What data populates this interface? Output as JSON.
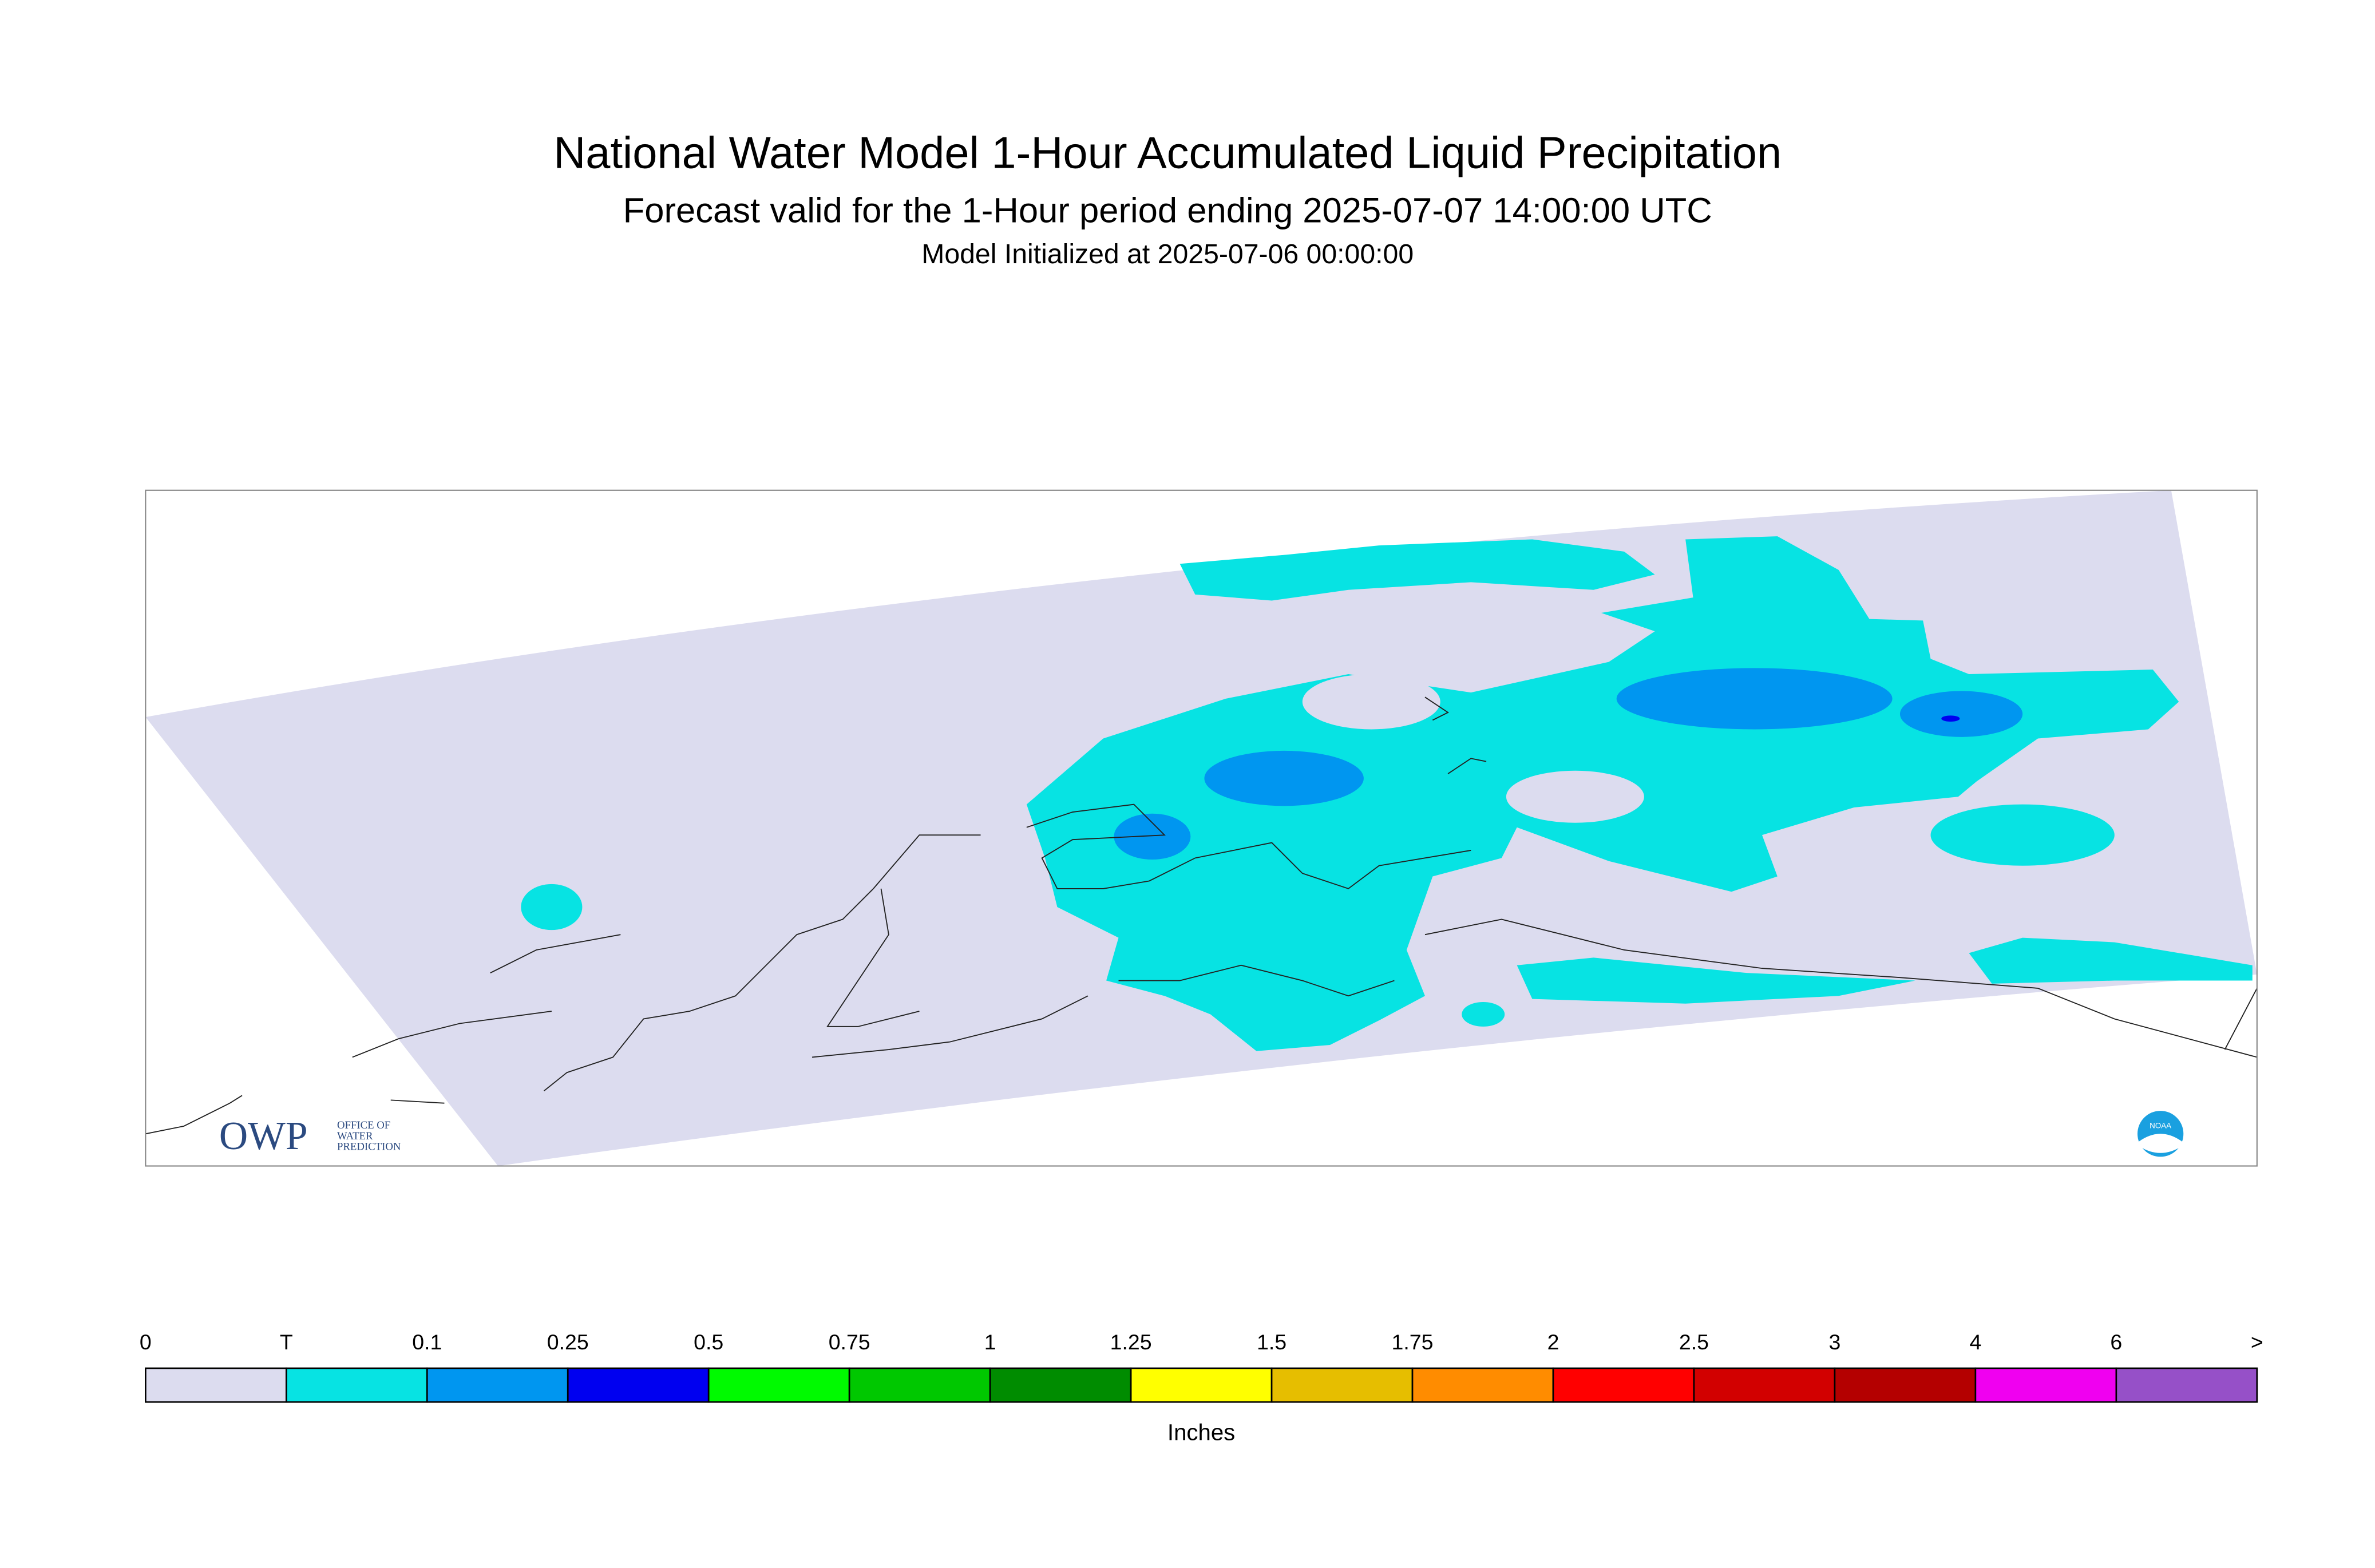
{
  "header": {
    "title": "National Water Model 1-Hour Accumulated Liquid Precipitation",
    "subtitle": "Forecast valid for the 1-Hour period ending 2025-07-07 14:00:00 UTC",
    "init": "Model Initialized at 2025-07-06 00:00:00"
  },
  "legend": {
    "labels": [
      "0",
      "T",
      "0.1",
      "0.25",
      "0.5",
      "0.75",
      "1",
      "1.25",
      "1.5",
      "1.75",
      "2",
      "2.5",
      "3",
      "4",
      "6",
      ">"
    ],
    "colors": [
      "#dcdcef",
      "#07e3e3",
      "#0096f0",
      "#0000f0",
      "#00fa00",
      "#00c800",
      "#008c00",
      "#ffff00",
      "#e6be00",
      "#ff8c00",
      "#ff0000",
      "#d20000",
      "#b40000",
      "#f000f0",
      "#9650c8"
    ],
    "unit": "Inches"
  },
  "logos": {
    "owp": "OWP",
    "owp_lines": [
      "OFFICE OF",
      "WATER",
      "PREDICTION"
    ],
    "noaa": "NOAA"
  }
}
